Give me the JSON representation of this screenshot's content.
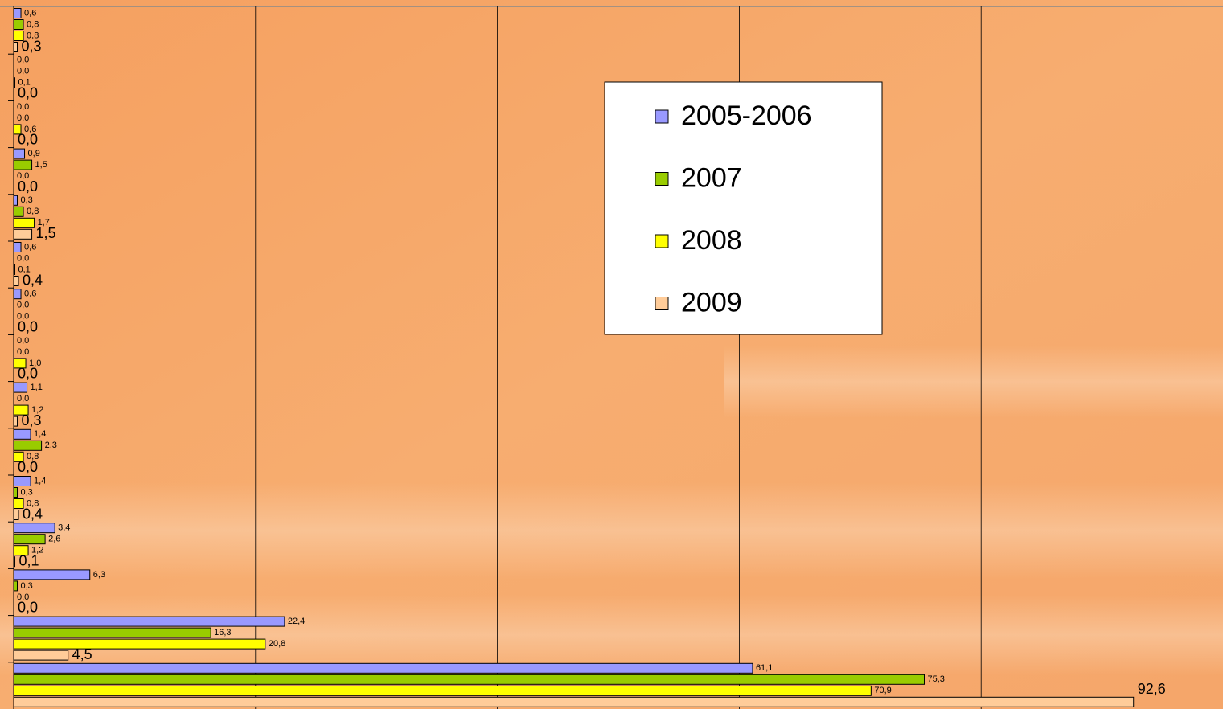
{
  "chart_data": {
    "type": "barh",
    "categories": [
      null,
      null,
      null,
      null,
      null,
      null,
      null,
      null,
      null,
      null,
      null,
      null,
      null,
      null,
      null
    ],
    "series": [
      {
        "name": "2005-2006",
        "color": "#9999ff",
        "values": [
          0.6,
          0.0,
          0.0,
          0.9,
          0.3,
          0.6,
          0.6,
          0.0,
          1.1,
          1.4,
          1.4,
          3.4,
          6.3,
          22.4,
          61.1
        ],
        "value_labels": [
          "0,6",
          "0,0",
          "0,0",
          "0,9",
          "0,3",
          "0,6",
          "0,6",
          "0,0",
          "1,1",
          "1,4",
          "1,4",
          "3,4",
          "6,3",
          "22,4",
          "61,1"
        ]
      },
      {
        "name": "2007",
        "color": "#99cc00",
        "values": [
          0.8,
          0.0,
          0.0,
          1.5,
          0.8,
          0.0,
          0.0,
          0.0,
          0.0,
          2.3,
          0.3,
          2.6,
          0.3,
          16.3,
          75.3
        ],
        "value_labels": [
          "0,8",
          "0,0",
          "0,0",
          "1,5",
          "0,8",
          "0,0",
          "0,0",
          "0,0",
          "0,0",
          "2,3",
          "0,3",
          "2,6",
          "0,3",
          "16,3",
          "75,3"
        ]
      },
      {
        "name": "2008",
        "color": "#ffff00",
        "values": [
          0.8,
          0.1,
          0.6,
          0.0,
          1.7,
          0.1,
          0.0,
          1.0,
          1.2,
          0.8,
          0.8,
          1.2,
          0.0,
          20.8,
          70.9
        ],
        "value_labels": [
          "0,8",
          "0,1",
          "0,6",
          "0,0",
          "1,7",
          "0,1",
          "0,0",
          "1,0",
          "1,2",
          "0,8",
          "0,8",
          "1,2",
          "0,0",
          "20,8",
          "70,9"
        ]
      },
      {
        "name": "2009",
        "color": "#ffcc99",
        "values": [
          0.3,
          0.0,
          0.0,
          0.0,
          1.5,
          0.4,
          0.0,
          0.0,
          0.3,
          0.0,
          0.4,
          0.1,
          0.0,
          4.5,
          92.6
        ],
        "value_labels": [
          "0,3",
          "0,0",
          "0,0",
          "0,0",
          "1,5",
          "0,4",
          "0,0",
          "0,0",
          "0,3",
          "0,0",
          "0,4",
          "0,1",
          "0,0",
          "4,5",
          "92,6"
        ]
      }
    ],
    "xlim": [
      0,
      100
    ],
    "xticks": [
      0,
      20,
      40,
      60,
      80,
      100
    ],
    "grid": true,
    "legend": "top-right"
  }
}
